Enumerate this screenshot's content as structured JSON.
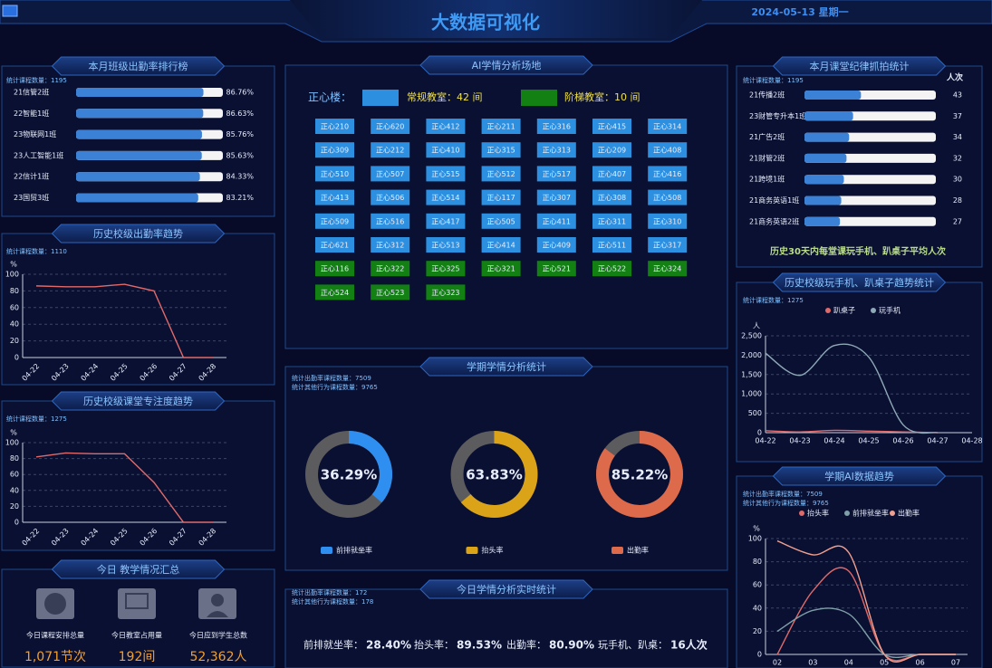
{
  "header": {
    "title": "大数据可视化",
    "date": "2024-05-13 星期一"
  },
  "attendance_rank": {
    "title": "本月班级出勤率排行榜",
    "count": "统计课程数量：1195",
    "type": "bar",
    "categories": [
      "21信管2班",
      "22智能1班",
      "23物联网1班",
      "23人工智能1班",
      "22信计1班",
      "23国贸3班"
    ],
    "values": [
      86.76,
      86.63,
      85.76,
      85.63,
      84.33,
      83.21
    ],
    "value_labels": [
      "86.76%",
      "86.63%",
      "85.76%",
      "85.63%",
      "84.33%",
      "83.21%"
    ],
    "xlim": [
      0,
      100
    ],
    "color": "#3b82d6"
  },
  "attendance_trend": {
    "title": "历史校级出勤率趋势",
    "count": "统计课程数量：1110",
    "type": "line",
    "y_label": "%",
    "x": [
      "04-22",
      "04-23",
      "04-24",
      "04-25",
      "04-26",
      "04-27",
      "04-28"
    ],
    "values": [
      86,
      85,
      85,
      88,
      80,
      0,
      0
    ],
    "color": "#e06a6a",
    "ylim": [
      0,
      100
    ],
    "yticks": [
      0,
      20,
      40,
      60,
      80,
      100
    ],
    "grid": true
  },
  "focus_trend": {
    "title": "历史校级课堂专注度趋势",
    "count": "统计课程数量：1275",
    "type": "line",
    "y_label": "%",
    "x": [
      "04-22",
      "04-23",
      "04-24",
      "04-25",
      "04-26",
      "04-27",
      "04-28"
    ],
    "values": [
      82,
      87,
      86,
      86,
      50,
      0,
      0
    ],
    "color": "#e06a6a",
    "ylim": [
      0,
      100
    ],
    "yticks": [
      0,
      20,
      40,
      60,
      80,
      100
    ],
    "grid": true
  },
  "teaching_summary": {
    "title": "今日 教学情况汇总",
    "items": [
      {
        "label": "今日课程安排总量",
        "value": "1,071节次"
      },
      {
        "label": "今日教室占用量",
        "value": "192间"
      },
      {
        "label": "今日应到学生总数",
        "value": "52,362人"
      }
    ]
  },
  "classrooms": {
    "title": "AI学情分析场地",
    "building": "正心楼：",
    "regular_label": "常规教室：42 间",
    "lecture_label": "阶梯教室：10 间",
    "regular_color": "#2d8fe0",
    "lecture_color": "#138013",
    "regular": [
      "正心210",
      "正心620",
      "正心412",
      "正心211",
      "正心316",
      "正心415",
      "正心314",
      "正心309",
      "正心212",
      "正心410",
      "正心315",
      "正心313",
      "正心209",
      "正心408",
      "正心510",
      "正心507",
      "正心515",
      "正心512",
      "正心517",
      "正心407",
      "正心416",
      "正心413",
      "正心506",
      "正心514",
      "正心117",
      "正心307",
      "正心308",
      "正心508",
      "正心509",
      "正心516",
      "正心417",
      "正心505",
      "正心411",
      "正心311",
      "正心310",
      "正心621",
      "正心312",
      "正心513",
      "正心414",
      "正心409",
      "正心511",
      "正心317"
    ],
    "lecture": [
      "正心116",
      "正心322",
      "正心325",
      "正心321",
      "正心521",
      "正心522",
      "正心324",
      "正心524",
      "正心523",
      "正心323"
    ]
  },
  "semester_stats": {
    "title": "学期学情分析统计",
    "counts": [
      "统计出勤率课程数量：7509",
      "统计其他行为课程数量：9765"
    ],
    "type": "donut",
    "categories": [
      "前排就坐率",
      "抬头率",
      "出勤率"
    ],
    "values": [
      36.29,
      63.83,
      85.22
    ],
    "value_labels": [
      "36.29%",
      "63.83%",
      "85.22%"
    ],
    "colors": [
      "#2e8ff0",
      "#dba418",
      "#dd6a4a"
    ]
  },
  "realtime": {
    "title": "今日学情分析实时统计",
    "counts": [
      "统计出勤率课程数量：172",
      "统计其他行为课程数量：178"
    ],
    "items": [
      {
        "label": "前排就坐率：",
        "value": "28.40%"
      },
      {
        "label": "抬头率：",
        "value": "89.53%"
      },
      {
        "label": "出勤率：",
        "value": "80.90%"
      },
      {
        "label": "玩手机、趴桌：",
        "value": "16人次"
      }
    ]
  },
  "discipline_rank": {
    "title": "本月课堂纪律抓拍统计",
    "count": "统计课程数量：1195",
    "unit": "人次",
    "type": "bar",
    "categories": [
      "21传播2班",
      "23财管专升本1班",
      "21广告2班",
      "21财管2班",
      "21跨境1班",
      "21商务英语1班",
      "21商务英语2班"
    ],
    "values": [
      43,
      37,
      34,
      32,
      30,
      28,
      27
    ],
    "xlim": [
      0,
      100
    ],
    "color": "#3b82d6",
    "footer": "历史30天内每堂课玩手机、趴桌子平均人次"
  },
  "phone_trend": {
    "title": "历史校级玩手机、趴桌子趋势统计",
    "count": "统计课程数量：1275",
    "type": "line",
    "y_label": "人",
    "x": [
      "04-22",
      "04-23",
      "04-24",
      "04-25",
      "04-26",
      "04-27",
      "04-28"
    ],
    "series": [
      {
        "name": "趴桌子",
        "color": "#e06a6a",
        "values": [
          50,
          20,
          60,
          40,
          20,
          0,
          null
        ]
      },
      {
        "name": "玩手机",
        "color": "#8fa9b8",
        "values": [
          2050,
          1480,
          2250,
          1950,
          200,
          0,
          null
        ]
      }
    ],
    "ylim": [
      0,
      2500
    ],
    "yticks": [
      0,
      500,
      {
        "value": 1000,
        "label": "1,000"
      },
      {
        "value": 1500,
        "label": "1,500"
      },
      {
        "value": 2000,
        "label": "2,000"
      },
      {
        "value": 2500,
        "label": "2,500"
      }
    ],
    "grid": true,
    "smooth": true
  },
  "ai_trend": {
    "title": "学期AI数据趋势",
    "counts": [
      "统计出勤率课程数量：7509",
      "统计其他行为课程数量：9765"
    ],
    "type": "line",
    "y_label": "%",
    "x": [
      "02",
      "03",
      "04",
      "05",
      "06",
      "07"
    ],
    "series": [
      {
        "name": "抬头率",
        "color": "#e06a6a",
        "values": [
          0,
          55,
          72,
          0,
          0,
          0
        ]
      },
      {
        "name": "前排就坐率",
        "color": "#7fa0a8",
        "values": [
          20,
          38,
          35,
          0,
          0,
          0
        ]
      },
      {
        "name": "出勤率",
        "color": "#f0a090",
        "values": [
          98,
          86,
          88,
          0,
          0,
          0
        ]
      }
    ],
    "ylim": [
      0,
      100
    ],
    "yticks": [
      0,
      20,
      40,
      60,
      80,
      100
    ],
    "grid": true,
    "smooth": true
  }
}
